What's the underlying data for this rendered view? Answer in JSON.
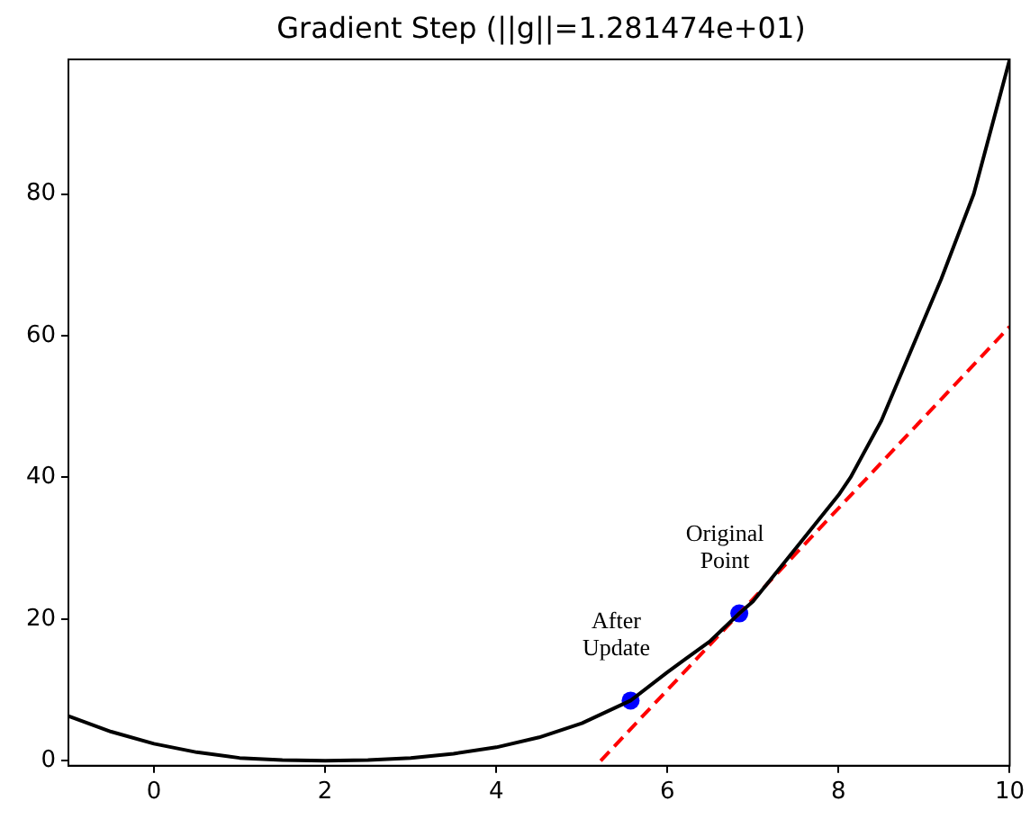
{
  "chart_data": {
    "type": "line",
    "title": "Gradient Step (||g||=1.281474e+01)",
    "xlim": [
      -1,
      10
    ],
    "xticks": [
      0,
      2,
      4,
      6,
      8,
      10
    ],
    "ylim": [
      -0.7,
      99
    ],
    "yticks": [
      0,
      20,
      40,
      60,
      80
    ],
    "grid": false,
    "legend": false,
    "series": [
      {
        "color": "#000000",
        "line_style": "solid",
        "marker": "none",
        "x": [
          -1,
          -0.5,
          0,
          0.5,
          1,
          1.5,
          2,
          2.5,
          3,
          3.5,
          4,
          4.5,
          5,
          5.57,
          6,
          6.5,
          6.84,
          7,
          7.5,
          8,
          8.14,
          8.5,
          8.92,
          9.2,
          9.58,
          10
        ],
        "values": [
          6.3,
          4.1,
          2.4,
          1.2,
          0.4,
          0.1,
          0,
          0.1,
          0.4,
          1,
          1.9,
          3.3,
          5.3,
          8.5,
          12.5,
          16.9,
          20.8,
          22.5,
          30,
          37.5,
          40,
          48,
          60,
          68,
          80,
          99
        ]
      },
      {
        "color": "#ff0000",
        "line_style": "dashed",
        "marker": "none",
        "x": [
          5.22,
          10
        ],
        "values": [
          0,
          61.3
        ]
      },
      {
        "type": "scatter",
        "color": "#0000ff",
        "marker": "circle",
        "x": [
          6.84,
          5.57
        ],
        "values": [
          20.8,
          8.5
        ]
      }
    ],
    "annotations": [
      {
        "text": "Original\nPoint",
        "x": 6.84,
        "y": 20.8
      },
      {
        "text": "After\nUpdate",
        "x": 5.57,
        "y": 8.5
      }
    ]
  }
}
